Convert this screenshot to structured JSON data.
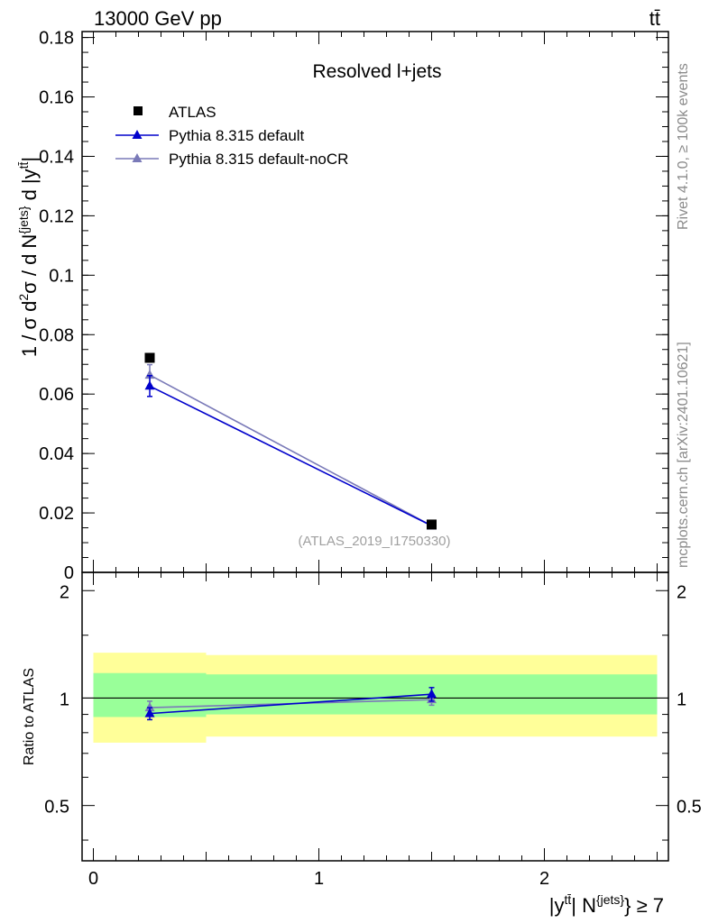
{
  "header": {
    "energy_label": "13000 GeV pp",
    "process_label": "tt̄"
  },
  "side_labels": {
    "rivet": "Rivet 4.1.0, ≥ 100k events",
    "mcplots": "mcplots.cern.ch [arXiv:2401.10621]"
  },
  "colors": {
    "atlas": "#000000",
    "default": "#0000cc",
    "nocr": "#7a7ab8",
    "band_inner": "#99ff99",
    "band_outer": "#ffff99"
  },
  "chart_data": [
    {
      "type": "scatter",
      "panel": "main",
      "title": "Resolved l+jets",
      "analysis_label": "(ATLAS_2019_I1750330)",
      "xlim": [
        -0.05,
        2.55
      ],
      "ylim": [
        0,
        0.182
      ],
      "ylabel_parts": {
        "prefix": "1 / σ d",
        "sup2": "2",
        "mid": "σ / d N",
        "sup_jets": "{jets}",
        "suffix": " d |y",
        "sup_tt": "tt̄",
        "end": "|"
      },
      "yticks": [
        "0",
        "0.02",
        "0.04",
        "0.06",
        "0.08",
        "0.1",
        "0.12",
        "0.14",
        "0.16",
        "0.18"
      ],
      "ytick_values": [
        0,
        0.02,
        0.04,
        0.06,
        0.08,
        0.1,
        0.12,
        0.14,
        0.16,
        0.18
      ],
      "series": [
        {
          "name": "ATLAS",
          "marker": "square",
          "x": [
            0.25,
            1.5
          ],
          "y": [
            0.0722,
            0.0161
          ],
          "yerr": [
            0.0,
            0.0
          ]
        },
        {
          "name": "Pythia 8.315 default",
          "marker": "triangle",
          "x": [
            0.25,
            1.5
          ],
          "y": [
            0.0627,
            0.0157
          ],
          "yerr": [
            0.0035,
            0.0008
          ]
        },
        {
          "name": "Pythia 8.315 default-noCR",
          "marker": "triangle",
          "x": [
            0.25,
            1.5
          ],
          "y": [
            0.0664,
            0.0157
          ],
          "yerr": [
            0.0035,
            0.0008
          ]
        }
      ]
    },
    {
      "type": "line",
      "panel": "ratio",
      "ylabel": "Ratio to ATLAS",
      "xlabel_parts": {
        "prefix": "|y",
        "sup_tt": "tt̄",
        "mid": "| N",
        "sup_jets": "{jets}",
        "suffix": "} ≥ 7"
      },
      "xlim": [
        -0.05,
        2.55
      ],
      "ylim": [
        0.35,
        2.25
      ],
      "yscale": "log",
      "xticks": [
        "0",
        "1",
        "2"
      ],
      "xtick_values": [
        0,
        1,
        2
      ],
      "yticks": [
        "0.5",
        "1",
        "2"
      ],
      "ytick_values": [
        0.5,
        1,
        2
      ],
      "bands": [
        {
          "x": [
            0,
            0.5
          ],
          "inner": [
            0.885,
            1.175
          ],
          "outer": [
            0.75,
            1.34
          ]
        },
        {
          "x": [
            0.5,
            2.5
          ],
          "inner": [
            0.9,
            1.165
          ],
          "outer": [
            0.78,
            1.32
          ]
        }
      ],
      "series": [
        {
          "name": "Pythia 8.315 default",
          "x": [
            0.25,
            1.5
          ],
          "y": [
            0.905,
            1.025
          ],
          "yerr": [
            0.035,
            0.045
          ]
        },
        {
          "name": "Pythia 8.315 default-noCR",
          "x": [
            0.25,
            1.5
          ],
          "y": [
            0.94,
            0.99
          ],
          "yerr": [
            0.04,
            0.035
          ]
        }
      ]
    }
  ]
}
